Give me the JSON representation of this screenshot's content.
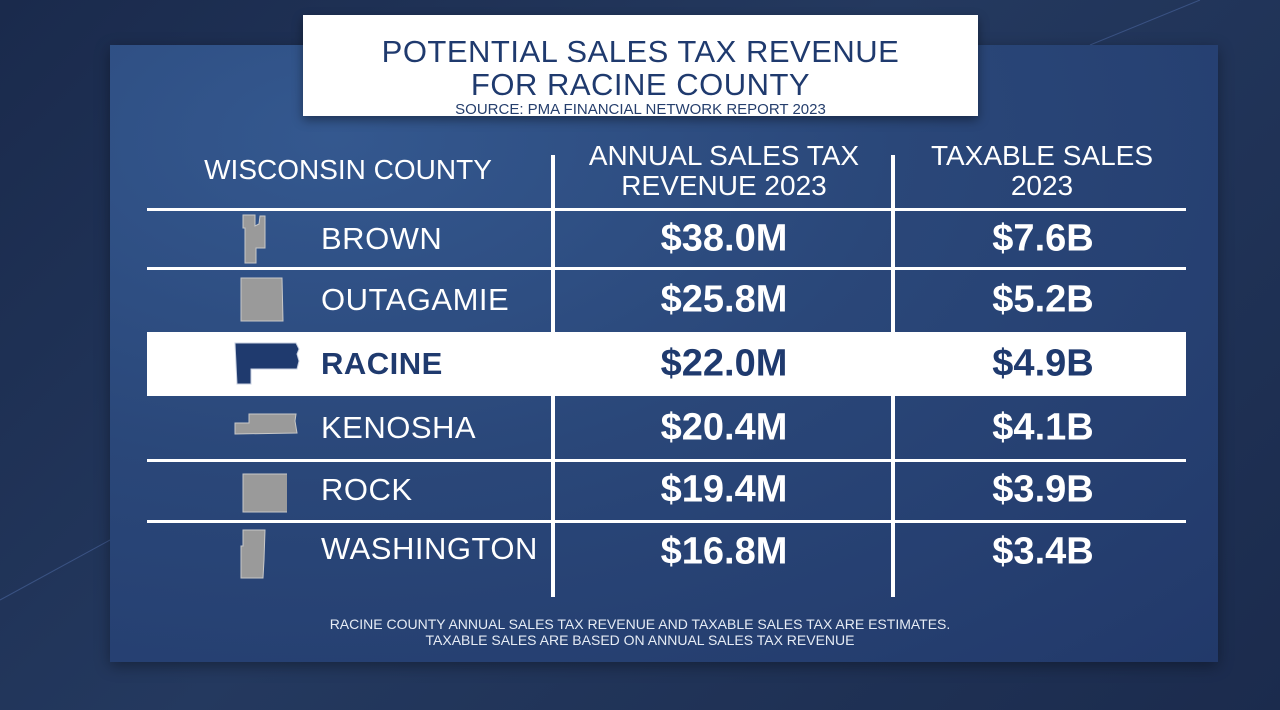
{
  "title": {
    "line1": "POTENTIAL SALES TAX REVENUE",
    "line2": "FOR RACINE COUNTY",
    "source": "SOURCE: PMA FINANCIAL NETWORK REPORT 2023"
  },
  "chart_data": {
    "type": "table",
    "columns": [
      "WISCONSIN COUNTY",
      "ANNUAL SALES TAX REVENUE 2023",
      "TAXABLE SALES 2023"
    ],
    "column_header_lines": {
      "county": [
        "WISCONSIN COUNTY"
      ],
      "revenue": [
        "ANNUAL SALES TAX",
        "REVENUE 2023"
      ],
      "taxable": [
        "TAXABLE SALES",
        "2023"
      ]
    },
    "rows": [
      {
        "county": "BROWN",
        "revenue": "$38.0M",
        "taxable": "$7.6B",
        "highlighted": false
      },
      {
        "county": "OUTAGAMIE",
        "revenue": "$25.8M",
        "taxable": "$5.2B",
        "highlighted": false
      },
      {
        "county": "RACINE",
        "revenue": "$22.0M",
        "taxable": "$4.9B",
        "highlighted": true
      },
      {
        "county": "KENOSHA",
        "revenue": "$20.4M",
        "taxable": "$4.1B",
        "highlighted": false
      },
      {
        "county": "ROCK",
        "revenue": "$19.4M",
        "taxable": "$3.9B",
        "highlighted": false
      },
      {
        "county": "WASHINGTON",
        "revenue": "$16.8M",
        "taxable": "$3.4B",
        "highlighted": false
      }
    ]
  },
  "footnote": {
    "line1": "RACINE COUNTY ANNUAL SALES TAX REVENUE AND TAXABLE SALES TAX ARE ESTIMATES.",
    "line2": "TAXABLE SALES ARE BASED ON ANNUAL SALES TAX REVENUE"
  },
  "colors": {
    "navy_text": "#1f3a6e",
    "panel_blue": "#2a4779",
    "county_shape_gray": "#9a9a9a",
    "highlight_bg": "#ffffff"
  }
}
